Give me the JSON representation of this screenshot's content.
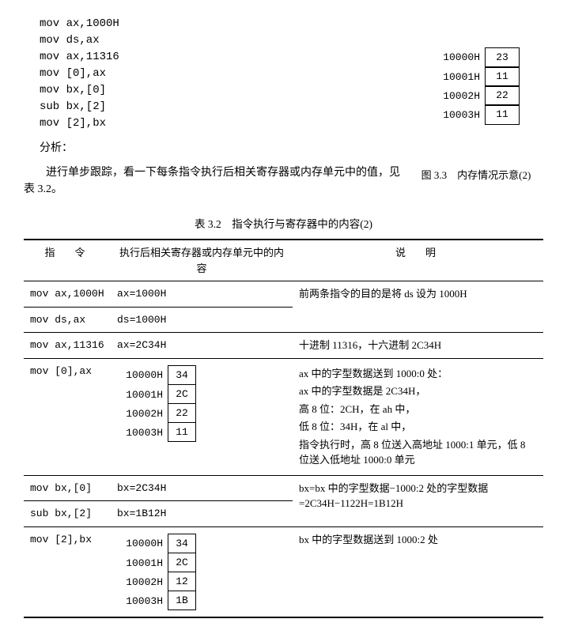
{
  "code_lines": "mov ax,1000H\nmov ds,ax\nmov ax,11316\nmov [0],ax\nmov bx,[0]\nsub bx,[2]\nmov [2],bx",
  "analysis_label": "分析：",
  "intro_text": "进行单步跟踪，看一下每条指令执行后相关寄存器或内存单元中的值，见表 3.2。",
  "fig33": {
    "rows": [
      {
        "addr": "10000H",
        "val": "23"
      },
      {
        "addr": "10001H",
        "val": "11"
      },
      {
        "addr": "10002H",
        "val": "22"
      },
      {
        "addr": "10003H",
        "val": "11"
      }
    ],
    "caption": "图 3.3　内存情况示意(2)"
  },
  "tab32": {
    "caption": "表 3.2　指令执行与寄存器中的内容(2)",
    "headers": {
      "c1": "指　令",
      "c2": "执行后相关寄存器或内存单元中的内容",
      "c3": "说　明"
    },
    "r1": {
      "instr": "mov ax,1000H",
      "mid": "ax=1000H",
      "expl": "前两条指令的目的是将 ds 设为 1000H"
    },
    "r2": {
      "instr": "mov ds,ax",
      "mid": "ds=1000H",
      "expl": ""
    },
    "r3": {
      "instr": "mov ax,11316",
      "mid": "ax=2C34H",
      "expl": "十进制 11316，十六进制 2C34H"
    },
    "r4": {
      "instr": "mov [0],ax",
      "mem": [
        {
          "addr": "10000H",
          "val": "34"
        },
        {
          "addr": "10001H",
          "val": "2C"
        },
        {
          "addr": "10002H",
          "val": "22"
        },
        {
          "addr": "10003H",
          "val": "11"
        }
      ],
      "expl": {
        "l1": "ax 中的字型数据送到 1000:0 处：",
        "l2": "ax 中的字型数据是 2C34H，",
        "l3": "高 8 位：2CH，在 ah 中，",
        "l4": "低 8 位：34H，在 al 中，",
        "l5": "指令执行时，高 8 位送入高地址 1000:1 单元，低 8 位送入低地址 1000:0 单元"
      }
    },
    "r5": {
      "instr": "mov bx,[0]",
      "mid": "bx=2C34H",
      "expl": "bx=bx 中的字型数据−1000:2 处的字型数据=2C34H−1122H=1B12H"
    },
    "r6": {
      "instr": "sub bx,[2]",
      "mid": "bx=1B12H",
      "expl": ""
    },
    "r7": {
      "instr": "mov [2],bx",
      "mem": [
        {
          "addr": "10000H",
          "val": "34"
        },
        {
          "addr": "10001H",
          "val": "2C"
        },
        {
          "addr": "10002H",
          "val": "12"
        },
        {
          "addr": "10003H",
          "val": "1B"
        }
      ],
      "expl": "bx 中的字型数据送到 1000:2 处"
    }
  }
}
